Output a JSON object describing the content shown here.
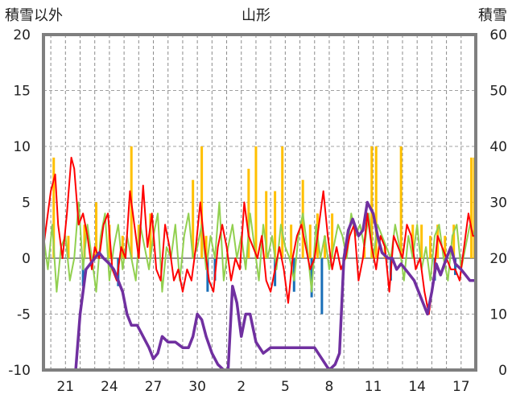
{
  "chart_data": {
    "type": "line",
    "title": "山形",
    "ylabel": "積雪以外",
    "y2label": "積雪",
    "ylim": [
      -10,
      20
    ],
    "y2lim": [
      0,
      60
    ],
    "yticks": [
      "20",
      "15",
      "10",
      "5",
      "0",
      "-5",
      "-10"
    ],
    "y2ticks": [
      "60",
      "50",
      "40",
      "30",
      "20",
      "10",
      "0"
    ],
    "xlim": [
      19.5,
      49
    ],
    "xticks": [
      {
        "x": 21,
        "label": "21"
      },
      {
        "x": 24,
        "label": "24"
      },
      {
        "x": 27,
        "label": "27"
      },
      {
        "x": 30,
        "label": "30"
      },
      {
        "x": 33,
        "label": "2"
      },
      {
        "x": 36,
        "label": "5"
      },
      {
        "x": 39,
        "label": "8"
      },
      {
        "x": 42,
        "label": "11"
      },
      {
        "x": 45,
        "label": "14"
      },
      {
        "x": 48,
        "label": "17"
      }
    ],
    "grid": true,
    "colors": {
      "precip": "#1a6fb8",
      "sunshine": "#ffc000",
      "temperature": "#ff0000",
      "wind": "#92d050",
      "snow_depth": "#7030a0"
    },
    "series": [
      {
        "key": "snow_depth",
        "axis": "y2",
        "x": [
          19.5,
          21.7,
          22.0,
          22.4,
          22.7,
          23.3,
          23.6,
          24.0,
          24.3,
          24.6,
          24.9,
          25.2,
          25.5,
          25.9,
          26.3,
          26.7,
          27.0,
          27.3,
          27.6,
          28.0,
          28.5,
          29.0,
          29.4,
          29.7,
          30.0,
          30.3,
          30.6,
          31.0,
          31.4,
          31.8,
          32.1,
          32.4,
          32.7,
          33.0,
          33.3,
          33.6,
          34.0,
          34.5,
          35.0,
          35.5,
          36.0,
          36.5,
          37.0,
          37.5,
          38.0,
          38.5,
          39.0,
          39.4,
          39.7,
          40.0,
          40.3,
          40.6,
          41.0,
          41.3,
          41.6,
          42.0,
          42.3,
          42.6,
          43.0,
          43.3,
          43.6,
          43.9,
          44.2,
          44.5,
          44.8,
          45.1,
          45.4,
          45.7,
          46.0,
          46.3,
          46.6,
          47.0,
          47.3,
          47.6,
          48.0,
          48.3,
          48.6,
          49.0
        ],
        "y": [
          0,
          0,
          10,
          18,
          19,
          21,
          20,
          19,
          18,
          16,
          14,
          10,
          8,
          8,
          6,
          4,
          2,
          3,
          6,
          5,
          5,
          4,
          4,
          6,
          10,
          9,
          6,
          3,
          1,
          0,
          0,
          15,
          12,
          6,
          10,
          10,
          5,
          3,
          4,
          4,
          4,
          4,
          4,
          4,
          4,
          2,
          0,
          1,
          3,
          20,
          25,
          27,
          24,
          25,
          30,
          28,
          24,
          21,
          20,
          20,
          18,
          19,
          18,
          17,
          16,
          14,
          12,
          10,
          14,
          19,
          17,
          20,
          22,
          19,
          18,
          17,
          16,
          16
        ]
      },
      {
        "key": "temperature",
        "axis": "y",
        "x": [
          19.5,
          20.0,
          20.3,
          20.5,
          20.8,
          21.1,
          21.4,
          21.6,
          21.9,
          22.2,
          22.5,
          22.8,
          23.0,
          23.3,
          23.6,
          23.9,
          24.2,
          24.5,
          24.8,
          25.1,
          25.4,
          25.7,
          26.0,
          26.3,
          26.6,
          26.9,
          27.2,
          27.5,
          27.8,
          28.1,
          28.4,
          28.7,
          29.0,
          29.3,
          29.6,
          29.9,
          30.2,
          30.5,
          30.8,
          31.1,
          31.4,
          31.7,
          32.0,
          32.3,
          32.6,
          32.9,
          33.2,
          33.5,
          33.8,
          34.1,
          34.4,
          34.7,
          35.0,
          35.3,
          35.6,
          35.9,
          36.2,
          36.5,
          36.8,
          37.1,
          37.4,
          37.7,
          38.0,
          38.3,
          38.6,
          38.9,
          39.2,
          39.5,
          39.8,
          40.1,
          40.4,
          40.7,
          41.0,
          41.3,
          41.6,
          41.9,
          42.2,
          42.5,
          42.8,
          43.1,
          43.4,
          43.7,
          44.0,
          44.3,
          44.6,
          44.9,
          45.2,
          45.5,
          45.8,
          46.1,
          46.4,
          46.7,
          47.0,
          47.3,
          47.6,
          47.9,
          48.2,
          48.5,
          48.8,
          49.0
        ],
        "y": [
          1,
          6,
          7.5,
          3,
          0,
          4,
          9,
          8,
          3,
          4,
          2,
          -1,
          1,
          0,
          3,
          4,
          -1,
          -2,
          1,
          0,
          6,
          3,
          0,
          6.5,
          1,
          4,
          -1,
          -2,
          3,
          1,
          -2,
          -1,
          -3,
          -1,
          -2,
          1,
          5,
          1,
          -2,
          -3,
          1,
          3,
          1,
          -2,
          0,
          -1,
          5,
          2,
          1,
          0,
          2,
          -2,
          -3,
          -1,
          1,
          -1,
          -4,
          0,
          2,
          3,
          1,
          -1,
          0,
          3,
          6,
          2,
          -1,
          1,
          -1,
          0,
          2,
          3,
          -2,
          0,
          4,
          1,
          -1,
          2,
          1,
          -3,
          2,
          1,
          0,
          3,
          2,
          -1,
          0,
          -3,
          -5,
          -2,
          2,
          1,
          0,
          -1,
          -1,
          -2,
          1,
          4,
          2,
          2
        ]
      },
      {
        "key": "wind",
        "axis": "y",
        "x": [
          19.5,
          19.8,
          20.1,
          20.4,
          20.7,
          21.0,
          21.3,
          21.6,
          21.9,
          22.2,
          22.5,
          22.8,
          23.1,
          23.4,
          23.7,
          24.0,
          24.3,
          24.6,
          24.9,
          25.2,
          25.5,
          25.8,
          26.1,
          26.4,
          26.7,
          27.0,
          27.3,
          27.6,
          27.9,
          28.2,
          28.5,
          28.8,
          29.1,
          29.4,
          29.7,
          30.0,
          30.3,
          30.6,
          30.9,
          31.2,
          31.5,
          31.8,
          32.1,
          32.4,
          32.7,
          33.0,
          33.3,
          33.6,
          33.9,
          34.2,
          34.5,
          34.8,
          35.1,
          35.4,
          35.7,
          36.0,
          36.3,
          36.6,
          36.9,
          37.2,
          37.5,
          37.8,
          38.1,
          38.4,
          38.7,
          39.0,
          39.3,
          39.6,
          39.9,
          40.2,
          40.5,
          40.8,
          41.1,
          41.4,
          41.7,
          42.0,
          42.3,
          42.6,
          42.9,
          43.2,
          43.5,
          43.8,
          44.1,
          44.4,
          44.7,
          45.0,
          45.3,
          45.6,
          45.9,
          46.2,
          46.5,
          46.8,
          47.1,
          47.4,
          47.7,
          48.0,
          48.3,
          48.6,
          48.9
        ],
        "y": [
          2,
          -1,
          3,
          -3,
          1,
          2,
          -2,
          0,
          5,
          -1,
          3,
          0,
          -3,
          2,
          4,
          -2,
          1,
          3,
          -1,
          2,
          0,
          -2,
          3,
          1,
          -1,
          2,
          4,
          -3,
          1,
          0,
          3,
          -2,
          2,
          4,
          0,
          1,
          3,
          -1,
          2,
          0,
          5,
          -2,
          1,
          3,
          0,
          2,
          -1,
          4,
          1,
          -2,
          3,
          0,
          2,
          -1,
          3,
          1,
          0,
          -2,
          2,
          4,
          1,
          -3,
          3,
          0,
          2,
          -1,
          1,
          3,
          2,
          0,
          4,
          2,
          3,
          1,
          4,
          0,
          3,
          2,
          1,
          0,
          3,
          1,
          -2,
          2,
          0,
          3,
          -1,
          1,
          -2,
          2,
          3,
          0,
          -2,
          2,
          3,
          -1,
          1,
          3,
          2
        ]
      }
    ],
    "bars": [
      {
        "key": "sunshine",
        "axis": "y",
        "x": [
          20.2,
          21.2,
          22.3,
          23.1,
          24.0,
          24.9,
          25.5,
          26.0,
          26.8,
          29.7,
          30.3,
          30.6,
          33.5,
          34.0,
          34.7,
          35.3,
          35.8,
          36.4,
          37.2,
          37.7,
          38.2,
          38.7,
          39.2,
          41.4,
          41.9,
          42.2,
          42.8,
          43.9,
          44.7,
          45.3,
          45.9,
          46.4,
          46.9,
          47.5,
          48.7,
          48.9
        ],
        "y": [
          9,
          2,
          3,
          5,
          3,
          2,
          10,
          3,
          4,
          7,
          10,
          2,
          8,
          10,
          6,
          6,
          10,
          3,
          7,
          3,
          4,
          2,
          4,
          1,
          10,
          10,
          1,
          10,
          3,
          3,
          2,
          3,
          2,
          3,
          9,
          9
        ]
      },
      {
        "key": "precip",
        "axis": "y",
        "x": [
          22.2,
          24.6,
          30.7,
          31.2,
          35.3,
          36.6,
          37.8,
          38.5,
          43.2,
          46.2,
          47.6
        ],
        "y": [
          -2.5,
          -2.5,
          -3,
          -2,
          -2.5,
          -3,
          -3.5,
          -5,
          -2,
          -2,
          -1.5
        ]
      }
    ]
  }
}
